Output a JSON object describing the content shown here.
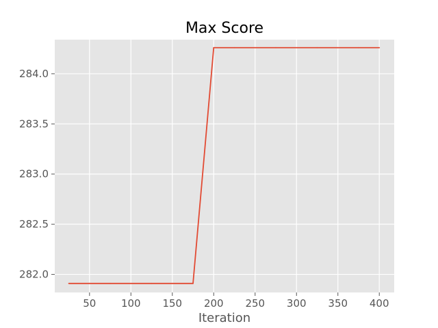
{
  "chart_data": {
    "type": "line",
    "title": "Max Score",
    "xlabel": "Iteration",
    "ylabel": "",
    "xlim": [
      8,
      418
    ],
    "ylim": [
      281.82,
      284.34
    ],
    "x_ticks": [
      50,
      100,
      150,
      200,
      250,
      300,
      350,
      400
    ],
    "y_ticks": [
      282.0,
      282.5,
      283.0,
      283.5,
      284.0
    ],
    "x_tick_labels": [
      "50",
      "100",
      "150",
      "200",
      "250",
      "300",
      "350",
      "400"
    ],
    "y_tick_labels": [
      "282.0",
      "282.5",
      "283.0",
      "283.5",
      "284.0"
    ],
    "grid": true,
    "series": [
      {
        "color": "#E24A33",
        "x": [
          25,
          50,
          75,
          100,
          125,
          150,
          175,
          200,
          225,
          250,
          275,
          300,
          325,
          350,
          375,
          400
        ],
        "y": [
          281.91,
          281.91,
          281.91,
          281.91,
          281.91,
          281.91,
          281.91,
          284.26,
          284.26,
          284.26,
          284.26,
          284.26,
          284.26,
          284.26,
          284.26,
          284.26
        ]
      }
    ],
    "style": {
      "plot_background": "#E5E5E5",
      "grid_color": "#FFFFFF"
    }
  }
}
